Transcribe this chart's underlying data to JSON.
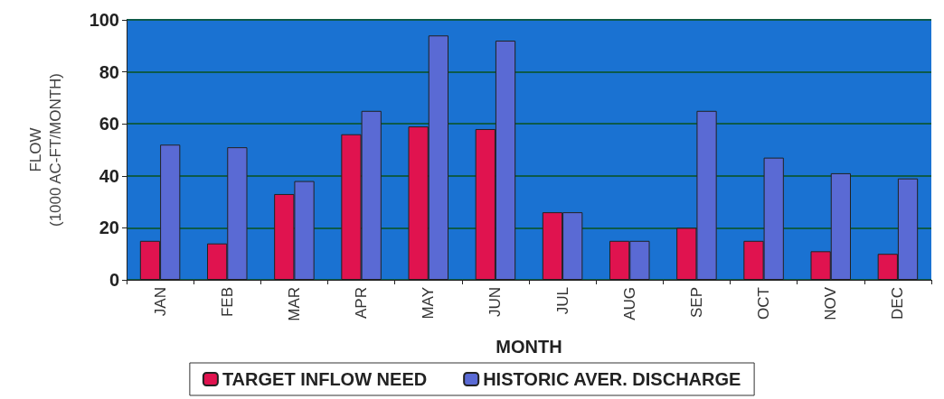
{
  "chart_data": {
    "type": "bar",
    "xlabel": "MONTH",
    "ylabel": "FLOW\n(1000 AC-FT/MONTH)",
    "categories": [
      "JAN",
      "FEB",
      "MAR",
      "APR",
      "MAY",
      "JUN",
      "JUL",
      "AUG",
      "SEP",
      "OCT",
      "NOV",
      "DEC"
    ],
    "series": [
      {
        "name": "TARGET INFLOW NEED",
        "color": "#e0134f",
        "values": [
          15,
          14,
          33,
          56,
          59,
          58,
          26,
          15,
          20,
          15,
          11,
          10
        ]
      },
      {
        "name": "HISTORIC AVER. DISCHARGE",
        "color": "#5a6ad4",
        "values": [
          52,
          51,
          38,
          65,
          94,
          92,
          26,
          15,
          65,
          47,
          41,
          39
        ]
      }
    ],
    "ylim": [
      0,
      100
    ],
    "yticks": [
      0,
      20,
      40,
      60,
      80,
      100
    ],
    "grid": "y",
    "legend": "bottom"
  }
}
